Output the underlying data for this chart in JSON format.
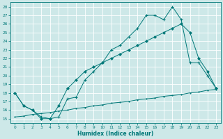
{
  "bg_color": "#cde8e8",
  "grid_color": "#ffffff",
  "line_color": "#007878",
  "xlabel": "Humidex (Indice chaleur)",
  "xlim": [
    -0.5,
    23.5
  ],
  "ylim": [
    14.5,
    28.5
  ],
  "yticks": [
    15,
    16,
    17,
    18,
    19,
    20,
    21,
    22,
    23,
    24,
    25,
    26,
    27,
    28
  ],
  "xticks": [
    0,
    1,
    2,
    3,
    4,
    5,
    6,
    7,
    8,
    9,
    10,
    11,
    12,
    13,
    14,
    15,
    16,
    17,
    18,
    19,
    20,
    21,
    22,
    23
  ],
  "line1_x": [
    0,
    1,
    2,
    3,
    4,
    5,
    6,
    7,
    8,
    9,
    10,
    11,
    12,
    13,
    14,
    15,
    16,
    17,
    18,
    19,
    20,
    21,
    22,
    23
  ],
  "line1_y": [
    18,
    16.5,
    16.0,
    15.2,
    15.0,
    15.2,
    17.3,
    17.5,
    19.5,
    20.5,
    21.5,
    23.0,
    23.5,
    24.5,
    25.5,
    27.0,
    27.0,
    26.5,
    28.0,
    26.5,
    21.5,
    21.5,
    20.0,
    18.5
  ],
  "line2_x": [
    0,
    1,
    2,
    3,
    4,
    5,
    6,
    7,
    8,
    9,
    10,
    11,
    12,
    13,
    14,
    15,
    16,
    17,
    18,
    19,
    20,
    21,
    22,
    23
  ],
  "line2_y": [
    18,
    16.5,
    16.0,
    15.0,
    15.0,
    16.5,
    18.5,
    19.5,
    20.5,
    21.0,
    21.5,
    22.0,
    22.5,
    23.0,
    23.5,
    24.0,
    24.5,
    25.0,
    25.5,
    26.0,
    25.0,
    22.0,
    20.5,
    18.5
  ],
  "line3_x": [
    0,
    1,
    2,
    3,
    4,
    5,
    6,
    7,
    8,
    9,
    10,
    11,
    12,
    13,
    14,
    15,
    16,
    17,
    18,
    19,
    20,
    21,
    22,
    23
  ],
  "line3_y": [
    15.2,
    15.3,
    15.5,
    15.6,
    15.7,
    15.9,
    16.0,
    16.2,
    16.3,
    16.5,
    16.6,
    16.8,
    16.9,
    17.0,
    17.2,
    17.3,
    17.4,
    17.6,
    17.7,
    17.8,
    18.0,
    18.1,
    18.3,
    18.4
  ]
}
